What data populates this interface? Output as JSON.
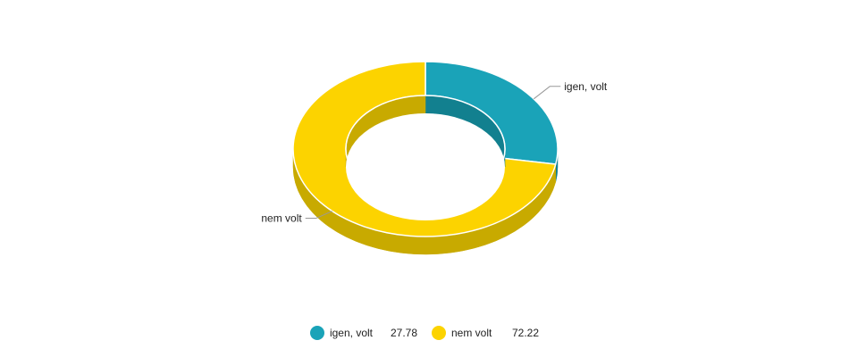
{
  "chart_data": {
    "type": "pie",
    "variant": "3d-donut",
    "categories": [
      "igen, volt",
      "nem volt"
    ],
    "values": [
      27.78,
      72.22
    ],
    "colors": [
      "#1aa3b8",
      "#fcd300"
    ],
    "side_colors": [
      "#12808f",
      "#c8aa00"
    ],
    "title": "",
    "legend_position": "bottom",
    "legend": [
      {
        "name": "igen, volt",
        "value": "27.78",
        "color": "#1aa3b8"
      },
      {
        "name": "nem volt",
        "value": "72.22",
        "color": "#fcd300"
      }
    ]
  }
}
